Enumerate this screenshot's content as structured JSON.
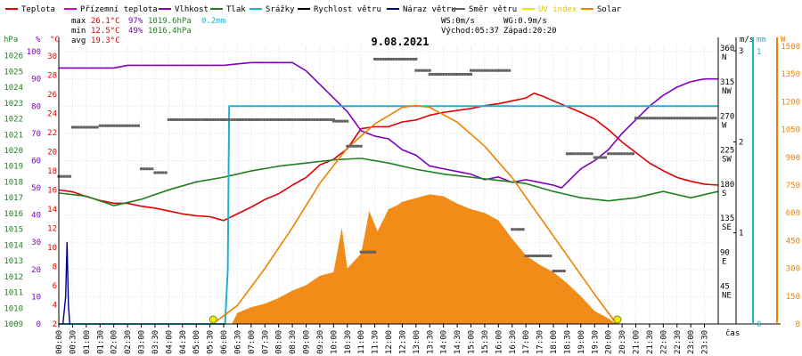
{
  "legend": [
    {
      "label": "Teplota",
      "color": "#e00000"
    },
    {
      "label": "Přízemní teplota",
      "color": "#d000d0"
    },
    {
      "label": "Vlhkost",
      "color": "#8000c0"
    },
    {
      "label": "Tlak",
      "color": "#208020"
    },
    {
      "label": "Srážky",
      "color": "#20b0d0"
    },
    {
      "label": "Rychlost větru",
      "color": "#000000"
    },
    {
      "label": "Náraz větru",
      "color": "#000090"
    },
    {
      "label": "Směr větru",
      "color": "#606060"
    },
    {
      "label": "UV index",
      "color": "#e8e800"
    },
    {
      "label": "Solar",
      "color": "#f08000"
    }
  ],
  "stats": {
    "max_label": "max",
    "max_temp": "26.1°C",
    "max_hum": "97%",
    "max_press": "1019.6hPa",
    "max_rain": "0.2mm",
    "min_label": "min",
    "min_temp": "12.5°C",
    "min_hum": "49%",
    "min_press": "1016.4hPa",
    "avg_label": "avg",
    "avg_temp": "19.3°C",
    "ws": "WS:0m/s",
    "wg": "WG:0.9m/s",
    "sunrise": "Východ:05:37",
    "sunset": "Západ:20:20"
  },
  "chart_data": {
    "type": "line",
    "title": "9.08.2021",
    "xlabel": "čas",
    "x_ticks": [
      "00:00",
      "00:30",
      "01:00",
      "01:30",
      "02:00",
      "02:30",
      "03:00",
      "03:30",
      "04:00",
      "04:30",
      "05:00",
      "05:30",
      "06:00",
      "06:30",
      "07:00",
      "07:30",
      "08:00",
      "08:30",
      "09:00",
      "09:30",
      "10:00",
      "10:30",
      "11:00",
      "11:30",
      "12:00",
      "12:30",
      "13:00",
      "13:30",
      "14:00",
      "14:30",
      "15:00",
      "15:30",
      "16:00",
      "16:30",
      "17:00",
      "17:30",
      "18:00",
      "18:30",
      "19:00",
      "19:30",
      "20:00",
      "20:30",
      "21:00",
      "21:30",
      "22:00",
      "22:30",
      "23:00",
      "23:30"
    ],
    "axes": {
      "hpa": {
        "unit": "hPa",
        "ticks": [
          "1009",
          "1010",
          "1011",
          "1012",
          "1013",
          "1014",
          "1015",
          "1016",
          "1017",
          "1018",
          "1019",
          "1020",
          "1021",
          "1022",
          "1023",
          "1024",
          "1025",
          "1026"
        ],
        "ylim": [
          1009,
          1026.6
        ]
      },
      "pct": {
        "unit": "%",
        "ticks": [
          "0",
          "10",
          "20",
          "30",
          "40",
          "50",
          "60",
          "70",
          "80",
          "90",
          "100"
        ],
        "ylim": [
          0,
          102
        ]
      },
      "degc": {
        "unit": "°C",
        "ticks": [
          "2",
          "4",
          "6",
          "8",
          "10",
          "12",
          "14",
          "16",
          "18",
          "20",
          "22",
          "24",
          "26",
          "28",
          "30"
        ],
        "ylim": [
          2,
          31
        ]
      },
      "dir": {
        "ticks": [
          "45",
          "90",
          "135",
          "180",
          "225",
          "270",
          "315",
          "360"
        ],
        "compass": [
          "NE",
          "E",
          "SE",
          "S",
          "SW",
          "W",
          "NW",
          "N"
        ],
        "ylim": [
          0,
          367
        ]
      },
      "ms": {
        "unit": "m/s",
        "ticks": [
          "1",
          "2",
          "3"
        ],
        "ylim": [
          0,
          3.05
        ]
      },
      "mm": {
        "unit": "mm",
        "ticks": [
          "0",
          "1"
        ],
        "ylim": [
          0,
          1.02
        ]
      },
      "w": {
        "unit": "W",
        "ticks": [
          "0",
          "150",
          "300",
          "450",
          "600",
          "750",
          "900",
          "1050",
          "1200",
          "1350",
          "1500"
        ],
        "ylim": [
          0,
          1500
        ]
      }
    },
    "series": [
      {
        "name": "Teplota",
        "axis": "degc",
        "color": "#e00000",
        "points": [
          [
            0,
            16
          ],
          [
            0.5,
            15.8
          ],
          [
            1,
            15.3
          ],
          [
            1.5,
            14.9
          ],
          [
            2,
            14.6
          ],
          [
            2.5,
            14.6
          ],
          [
            3,
            14.3
          ],
          [
            3.5,
            14.1
          ],
          [
            4,
            13.8
          ],
          [
            4.5,
            13.5
          ],
          [
            5,
            13.3
          ],
          [
            5.5,
            13.2
          ],
          [
            6,
            12.8
          ],
          [
            6.5,
            13.5
          ],
          [
            7,
            14.2
          ],
          [
            7.5,
            15
          ],
          [
            8,
            15.6
          ],
          [
            8.5,
            16.5
          ],
          [
            9,
            17.3
          ],
          [
            9.5,
            18.6
          ],
          [
            10,
            19.2
          ],
          [
            10.5,
            20.3
          ],
          [
            11,
            22.4
          ],
          [
            11.5,
            22.6
          ],
          [
            12,
            22.6
          ],
          [
            12.5,
            23.1
          ],
          [
            13,
            23.3
          ],
          [
            13.5,
            23.8
          ],
          [
            14,
            24.1
          ],
          [
            14.5,
            24.3
          ],
          [
            15,
            24.5
          ],
          [
            15.5,
            24.8
          ],
          [
            16,
            25
          ],
          [
            16.5,
            25.3
          ],
          [
            17,
            25.6
          ],
          [
            17.3,
            26.1
          ],
          [
            17.6,
            25.8
          ],
          [
            18,
            25.3
          ],
          [
            18.5,
            24.7
          ],
          [
            19,
            24.1
          ],
          [
            19.5,
            23.4
          ],
          [
            20,
            22.3
          ],
          [
            20.5,
            21
          ],
          [
            21,
            19.9
          ],
          [
            21.5,
            18.8
          ],
          [
            22,
            18
          ],
          [
            22.5,
            17.3
          ],
          [
            23,
            16.9
          ],
          [
            23.5,
            16.6
          ],
          [
            24,
            16.5
          ]
        ]
      },
      {
        "name": "Vlhkost",
        "axis": "pct",
        "color": "#8000c0",
        "points": [
          [
            0,
            94
          ],
          [
            2,
            94
          ],
          [
            2.5,
            95
          ],
          [
            6,
            95
          ],
          [
            7,
            96
          ],
          [
            8.5,
            96
          ],
          [
            9,
            93
          ],
          [
            9.5,
            88
          ],
          [
            10,
            83
          ],
          [
            10.5,
            78
          ],
          [
            11,
            71
          ],
          [
            11.5,
            69
          ],
          [
            12,
            68
          ],
          [
            12.5,
            64
          ],
          [
            13,
            62
          ],
          [
            13.5,
            58
          ],
          [
            14,
            57
          ],
          [
            14.5,
            56
          ],
          [
            15,
            55
          ],
          [
            15.5,
            53
          ],
          [
            16,
            54
          ],
          [
            16.5,
            52
          ],
          [
            17,
            53
          ],
          [
            17.5,
            52
          ],
          [
            18,
            51
          ],
          [
            18.3,
            50
          ],
          [
            18.7,
            54
          ],
          [
            19,
            57
          ],
          [
            19.5,
            60
          ],
          [
            20,
            64
          ],
          [
            20.5,
            70
          ],
          [
            21,
            75
          ],
          [
            21.5,
            80
          ],
          [
            22,
            84
          ],
          [
            22.5,
            87
          ],
          [
            23,
            89
          ],
          [
            23.5,
            90
          ],
          [
            24,
            90
          ]
        ]
      },
      {
        "name": "Tlak",
        "axis": "hpa",
        "color": "#208020",
        "points": [
          [
            0,
            1017.3
          ],
          [
            1,
            1017.1
          ],
          [
            2,
            1016.5
          ],
          [
            3,
            1016.9
          ],
          [
            4,
            1017.5
          ],
          [
            5,
            1018
          ],
          [
            6,
            1018.3
          ],
          [
            7,
            1018.7
          ],
          [
            8,
            1019
          ],
          [
            9,
            1019.2
          ],
          [
            10,
            1019.4
          ],
          [
            11,
            1019.5
          ],
          [
            12,
            1019.2
          ],
          [
            13,
            1018.8
          ],
          [
            14,
            1018.5
          ],
          [
            15,
            1018.3
          ],
          [
            16,
            1018.1
          ],
          [
            17,
            1017.9
          ],
          [
            18,
            1017.4
          ],
          [
            19,
            1017
          ],
          [
            20,
            1016.8
          ],
          [
            21,
            1017
          ],
          [
            22,
            1017.4
          ],
          [
            23,
            1017
          ],
          [
            24,
            1017.4
          ]
        ]
      },
      {
        "name": "Srážky",
        "axis": "mm",
        "color": "#20b0d0",
        "points": [
          [
            0,
            0
          ],
          [
            6.05,
            0
          ],
          [
            6.15,
            0.2
          ],
          [
            6.2,
            0.8
          ],
          [
            24,
            0.8
          ]
        ]
      },
      {
        "name": "Solar",
        "axis": "w",
        "color": "#f08000",
        "points": [
          [
            5.6,
            0
          ],
          [
            6.5,
            100
          ],
          [
            7.5,
            300
          ],
          [
            8.5,
            520
          ],
          [
            9.5,
            760
          ],
          [
            10.5,
            950
          ],
          [
            11.5,
            1080
          ],
          [
            12.5,
            1170
          ],
          [
            13,
            1180
          ],
          [
            13.5,
            1170
          ],
          [
            14.5,
            1090
          ],
          [
            15.5,
            960
          ],
          [
            16.5,
            790
          ],
          [
            17.5,
            580
          ],
          [
            18.5,
            370
          ],
          [
            19.5,
            160
          ],
          [
            20.3,
            0
          ]
        ]
      }
    ],
    "solar_measured": {
      "axis": "w",
      "color": "#f08000",
      "points": [
        [
          6.3,
          0
        ],
        [
          6.5,
          60
        ],
        [
          7,
          90
        ],
        [
          7.5,
          110
        ],
        [
          8,
          140
        ],
        [
          8.5,
          180
        ],
        [
          9,
          210
        ],
        [
          9.5,
          260
        ],
        [
          10,
          280
        ],
        [
          10.3,
          520
        ],
        [
          10.5,
          300
        ],
        [
          11,
          380
        ],
        [
          11.3,
          610
        ],
        [
          11.6,
          500
        ],
        [
          12,
          620
        ],
        [
          12.3,
          640
        ],
        [
          12.5,
          660
        ],
        [
          13,
          680
        ],
        [
          13.5,
          700
        ],
        [
          14,
          690
        ],
        [
          14.5,
          650
        ],
        [
          15,
          620
        ],
        [
          15.5,
          600
        ],
        [
          16,
          560
        ],
        [
          16.5,
          460
        ],
        [
          17,
          370
        ],
        [
          17.5,
          320
        ],
        [
          18,
          280
        ],
        [
          18.5,
          220
        ],
        [
          19,
          150
        ],
        [
          19.5,
          70
        ],
        [
          20,
          30
        ],
        [
          20.3,
          0
        ]
      ]
    },
    "gust": {
      "axis": "ms",
      "color": "#000090",
      "points": [
        [
          0.15,
          0
        ],
        [
          0.25,
          0.3
        ],
        [
          0.3,
          0.9
        ],
        [
          0.35,
          0.2
        ],
        [
          0.4,
          0
        ]
      ]
    },
    "wind_direction": {
      "axis": "dir",
      "color": "#606060",
      "points": [
        [
          0,
          195
        ],
        [
          0.5,
          260
        ],
        [
          1.5,
          262
        ],
        [
          2.5,
          262
        ],
        [
          3,
          205
        ],
        [
          3.5,
          200
        ],
        [
          4,
          270
        ],
        [
          5,
          270
        ],
        [
          6,
          270
        ],
        [
          7,
          270
        ],
        [
          8,
          270
        ],
        [
          9,
          270
        ],
        [
          10,
          268
        ],
        [
          10.5,
          235
        ],
        [
          11,
          95
        ],
        [
          11.5,
          350
        ],
        [
          12.5,
          350
        ],
        [
          13,
          335
        ],
        [
          13.5,
          330
        ],
        [
          14.5,
          330
        ],
        [
          15,
          335
        ],
        [
          16,
          335
        ],
        [
          16.5,
          125
        ],
        [
          17,
          90
        ],
        [
          17.5,
          90
        ],
        [
          18,
          70
        ],
        [
          18.5,
          225
        ],
        [
          19,
          225
        ],
        [
          19.5,
          220
        ],
        [
          20,
          225
        ],
        [
          21,
          272
        ],
        [
          22,
          272
        ],
        [
          23,
          272
        ],
        [
          24,
          272
        ]
      ]
    }
  }
}
